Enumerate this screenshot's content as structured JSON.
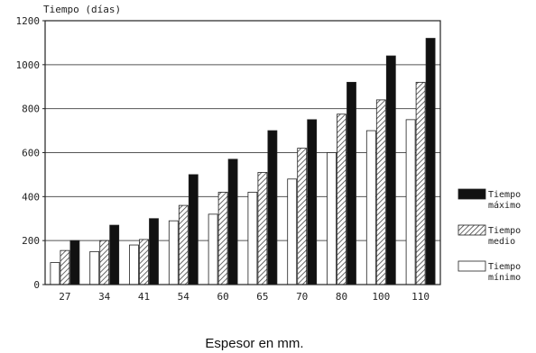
{
  "chart_data": {
    "type": "bar",
    "title": "",
    "ylabel": "Tiempo (días)",
    "xlabel": "Espesor en mm.",
    "categories": [
      "27",
      "34",
      "41",
      "54",
      "60",
      "65",
      "70",
      "80",
      "100",
      "110"
    ],
    "ylim": [
      0,
      1200
    ],
    "yticks": [
      "0",
      "200",
      "400",
      "600",
      "800",
      "1000",
      "1200"
    ],
    "grid": true,
    "legend_position": "right",
    "series": [
      {
        "name": "Tiempo mínimo",
        "pattern": "white",
        "values": [
          100,
          150,
          180,
          290,
          320,
          420,
          480,
          600,
          700,
          750
        ]
      },
      {
        "name": "Tiempo medio",
        "pattern": "hatched",
        "values": [
          155,
          200,
          205,
          360,
          420,
          510,
          620,
          775,
          840,
          920
        ]
      },
      {
        "name": "Tiempo máximo",
        "pattern": "black",
        "values": [
          200,
          270,
          300,
          500,
          570,
          700,
          750,
          920,
          1040,
          1120
        ]
      }
    ],
    "legend": [
      {
        "series": 2,
        "line1": "Tiempo",
        "line2": "máximo"
      },
      {
        "series": 1,
        "line1": "Tiempo",
        "line2": "medio"
      },
      {
        "series": 0,
        "line1": "Tiempo",
        "line2": "mínimo"
      }
    ]
  }
}
